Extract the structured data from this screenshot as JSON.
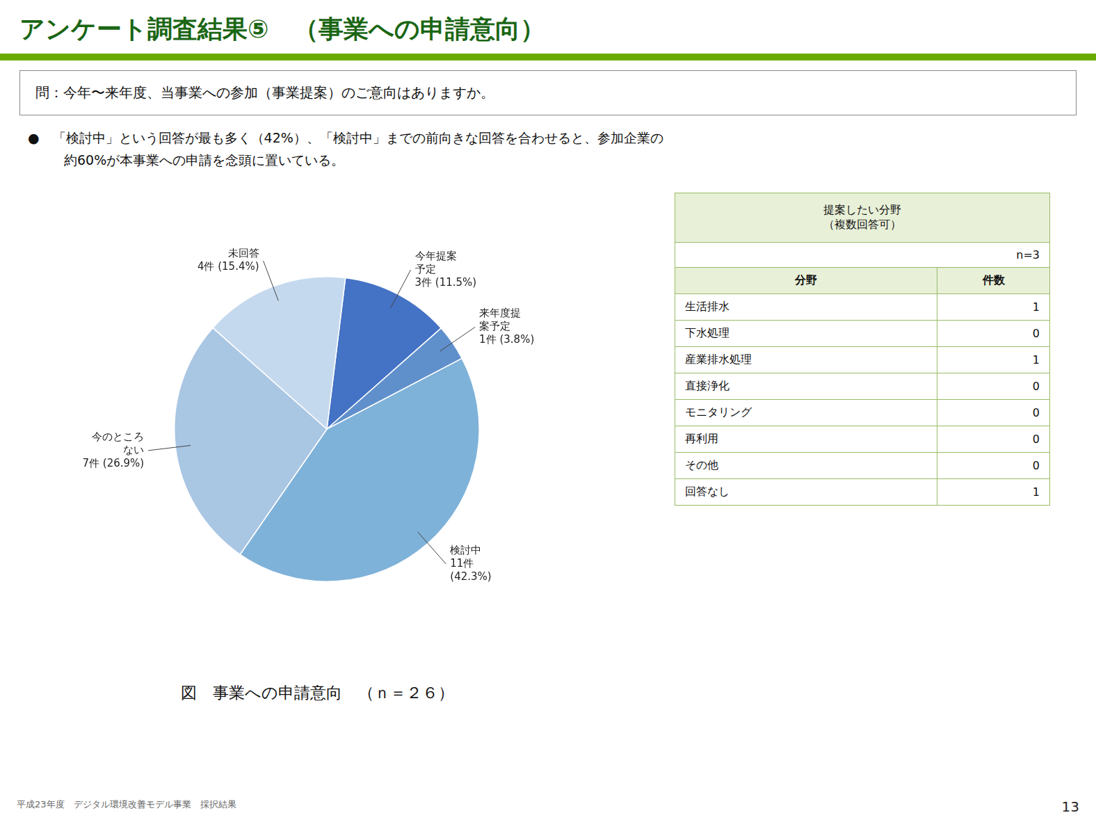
{
  "chart_data": {
    "type": "pie",
    "title": "アンケート調査結果⑤　（事業への申請意向）",
    "question": "問：今年〜来年度、当事業への参加（事業提案）のご意向はありますか。",
    "notes": [
      "●　「検討中」という回答が最も多く（42%）、「検討中」までの前向きな回答を合わせると、参加企業の",
      "約60%が本事業への申請を念頭に置いている。"
    ],
    "categories": [
      "今年提案\n予定",
      "来年度提\n案予定",
      "検討中",
      "今のところ\nない",
      "未回答"
    ],
    "values": [
      3,
      1,
      11,
      7,
      4
    ],
    "value_labels": [
      "3件 (11.5%)",
      "1件 (3.8%)",
      "11件\n(42.3%)",
      "7件 (26.9%)",
      "4件 (15.4%)"
    ],
    "colors": [
      "#4472c4",
      "#6090cc",
      "#7fb2d9",
      "#a9c6e3",
      "#c5d9ee"
    ],
    "data_labels": true,
    "legend": "none",
    "table": {
      "title": "提案したい分野\n（複数回答可）",
      "n": "n=3",
      "headers": [
        "分野",
        "件数"
      ],
      "rows": [
        [
          "生活排水",
          1
        ],
        [
          "下水処理",
          0
        ],
        [
          "産業排水処理",
          1
        ],
        [
          "直接浄化",
          0
        ],
        [
          "モニタリング",
          0
        ],
        [
          "再利用",
          0
        ],
        [
          "その他",
          0
        ],
        [
          "回答なし",
          1
        ]
      ]
    },
    "caption": "図　事業への申請意向　（ｎ＝２６）",
    "footer": "平成23年度　デジタル環境改善モデル事業　採択結果",
    "page_number": "13"
  }
}
